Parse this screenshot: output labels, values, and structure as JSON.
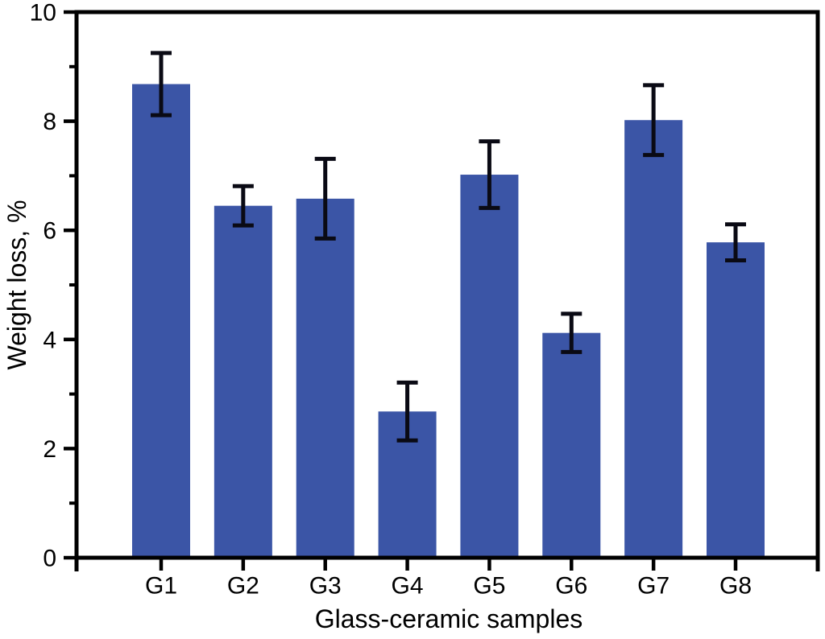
{
  "figure": {
    "background": "#FFFFFF"
  },
  "chart_data": {
    "type": "bar",
    "xlabel": "Glass-ceramic samples",
    "ylabel": "Weight loss, %",
    "categories": [
      "G1",
      "G2",
      "G3",
      "G4",
      "G5",
      "G6",
      "G7",
      "G8"
    ],
    "values": [
      8.68,
      6.45,
      6.58,
      2.68,
      7.02,
      4.12,
      8.02,
      5.78
    ],
    "errors": [
      0.57,
      0.36,
      0.73,
      0.53,
      0.61,
      0.35,
      0.64,
      0.33
    ],
    "ylim": [
      0,
      10
    ],
    "yticks_major": [
      0,
      2,
      4,
      6,
      8,
      10
    ],
    "ytick_labels": [
      "0",
      "2",
      "4",
      "6",
      "8",
      "10"
    ],
    "yticks_minor": [
      1,
      3,
      5,
      7,
      9
    ],
    "grid": false,
    "legend": "none",
    "error_bars": true,
    "frame": "full-box",
    "colors": {
      "bar_fill": "#3B55A6",
      "error_bar": "#0A0A14",
      "axis": "#000000",
      "text": "#000000"
    }
  }
}
